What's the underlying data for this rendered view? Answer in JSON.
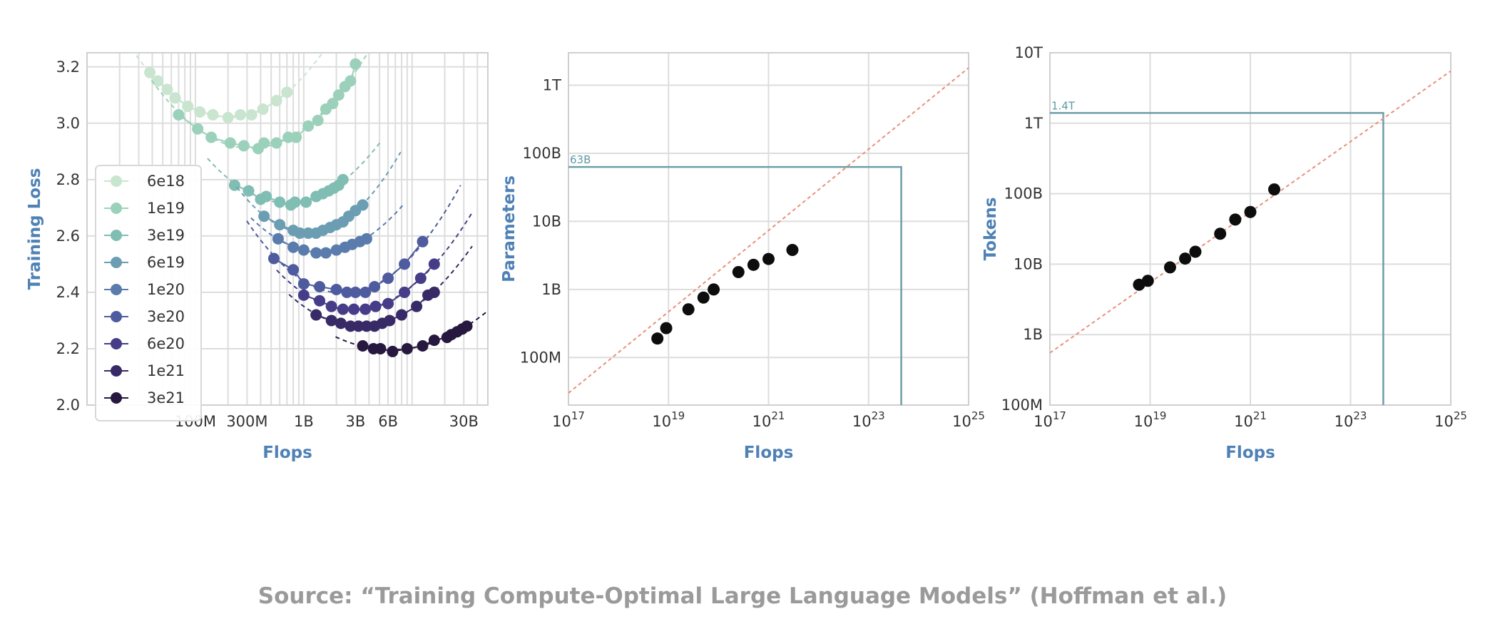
{
  "chart_data": [
    {
      "type": "line",
      "ylabel": "Training Loss",
      "xlabel": "Flops",
      "xscale": "log",
      "xlim": [
        10000000,
        50000000000
      ],
      "ylim": [
        2.0,
        3.25
      ],
      "grid": true,
      "x_ticks": [
        {
          "v": 100000000,
          "label": "100M"
        },
        {
          "v": 300000000,
          "label": "300M"
        },
        {
          "v": 1000000000,
          "label": "1B"
        },
        {
          "v": 3000000000,
          "label": "3B"
        },
        {
          "v": 6000000000,
          "label": "6B"
        },
        {
          "v": 30000000000,
          "label": "30B"
        }
      ],
      "y_ticks": [
        {
          "v": 2.0,
          "label": "2.0"
        },
        {
          "v": 2.2,
          "label": "2.2"
        },
        {
          "v": 2.4,
          "label": "2.4"
        },
        {
          "v": 2.6,
          "label": "2.6"
        },
        {
          "v": 2.8,
          "label": "2.8"
        },
        {
          "v": 3.0,
          "label": "3.0"
        },
        {
          "v": 3.2,
          "label": "3.2"
        }
      ],
      "legend_position": "left",
      "series": [
        {
          "name": "6e18",
          "color": "#c9e5cf",
          "points": [
            [
              38000000,
              3.18
            ],
            [
              45000000,
              3.15
            ],
            [
              55000000,
              3.12
            ],
            [
              65000000,
              3.09
            ],
            [
              85000000,
              3.06
            ],
            [
              110000000,
              3.04
            ],
            [
              145000000,
              3.03
            ],
            [
              200000000,
              3.02
            ],
            [
              260000000,
              3.03
            ],
            [
              330000000,
              3.03
            ],
            [
              420000000,
              3.05
            ],
            [
              560000000,
              3.08
            ],
            [
              700000000,
              3.11
            ]
          ]
        },
        {
          "name": "1e19",
          "color": "#9bd1bb",
          "points": [
            [
              70000000,
              3.03
            ],
            [
              105000000,
              2.98
            ],
            [
              140000000,
              2.95
            ],
            [
              210000000,
              2.93
            ],
            [
              280000000,
              2.92
            ],
            [
              380000000,
              2.91
            ],
            [
              430000000,
              2.93
            ],
            [
              560000000,
              2.93
            ],
            [
              720000000,
              2.95
            ],
            [
              850000000,
              2.95
            ],
            [
              1100000000,
              2.99
            ],
            [
              1350000000,
              3.01
            ],
            [
              1600000000,
              3.05
            ],
            [
              1850000000,
              3.07
            ],
            [
              2100000000,
              3.1
            ],
            [
              2400000000,
              3.13
            ],
            [
              2700000000,
              3.15
            ],
            [
              3000000000,
              3.21
            ]
          ]
        },
        {
          "name": "3e19",
          "color": "#80bdb2",
          "points": [
            [
              230000000,
              2.78
            ],
            [
              310000000,
              2.76
            ],
            [
              400000000,
              2.73
            ],
            [
              450000000,
              2.74
            ],
            [
              600000000,
              2.72
            ],
            [
              760000000,
              2.71
            ],
            [
              830000000,
              2.72
            ],
            [
              1050000000,
              2.72
            ],
            [
              1300000000,
              2.74
            ],
            [
              1500000000,
              2.75
            ],
            [
              1700000000,
              2.76
            ],
            [
              1900000000,
              2.77
            ],
            [
              2100000000,
              2.78
            ],
            [
              2300000000,
              2.8
            ]
          ]
        },
        {
          "name": "6e19",
          "color": "#6b9db3",
          "points": [
            [
              430000000,
              2.67
            ],
            [
              600000000,
              2.64
            ],
            [
              800000000,
              2.62
            ],
            [
              920000000,
              2.61
            ],
            [
              1100000000,
              2.61
            ],
            [
              1300000000,
              2.61
            ],
            [
              1500000000,
              2.62
            ],
            [
              1750000000,
              2.63
            ],
            [
              2000000000,
              2.64
            ],
            [
              2300000000,
              2.65
            ],
            [
              2600000000,
              2.67
            ],
            [
              3000000000,
              2.69
            ],
            [
              3500000000,
              2.71
            ]
          ]
        },
        {
          "name": "1e20",
          "color": "#5a7cad",
          "points": [
            [
              580000000,
              2.59
            ],
            [
              800000000,
              2.56
            ],
            [
              1000000000,
              2.55
            ],
            [
              1300000000,
              2.54
            ],
            [
              1600000000,
              2.54
            ],
            [
              2000000000,
              2.55
            ],
            [
              2400000000,
              2.56
            ],
            [
              2800000000,
              2.57
            ],
            [
              3300000000,
              2.58
            ],
            [
              3800000000,
              2.59
            ]
          ]
        },
        {
          "name": "3e20",
          "color": "#4e5b9f",
          "points": [
            [
              530000000,
              2.52
            ],
            [
              800000000,
              2.48
            ],
            [
              1000000000,
              2.43
            ],
            [
              1400000000,
              2.42
            ],
            [
              2000000000,
              2.41
            ],
            [
              2500000000,
              2.4
            ],
            [
              3000000000,
              2.4
            ],
            [
              3700000000,
              2.4
            ],
            [
              4500000000,
              2.42
            ],
            [
              6000000000,
              2.45
            ],
            [
              8500000000,
              2.5
            ],
            [
              12500000000,
              2.58
            ]
          ]
        },
        {
          "name": "6e20",
          "color": "#463c88",
          "points": [
            [
              1000000000,
              2.39
            ],
            [
              1400000000,
              2.37
            ],
            [
              1800000000,
              2.35
            ],
            [
              2300000000,
              2.34
            ],
            [
              2900000000,
              2.34
            ],
            [
              3700000000,
              2.34
            ],
            [
              4600000000,
              2.35
            ],
            [
              6000000000,
              2.36
            ],
            [
              8500000000,
              2.4
            ],
            [
              12000000000,
              2.45
            ],
            [
              16000000000,
              2.5
            ]
          ]
        },
        {
          "name": "1e21",
          "color": "#372a66",
          "points": [
            [
              1300000000,
              2.32
            ],
            [
              1800000000,
              2.3
            ],
            [
              2200000000,
              2.29
            ],
            [
              2700000000,
              2.28
            ],
            [
              3200000000,
              2.28
            ],
            [
              3800000000,
              2.28
            ],
            [
              4500000000,
              2.28
            ],
            [
              5300000000,
              2.29
            ],
            [
              6200000000,
              2.3
            ],
            [
              8000000000,
              2.32
            ],
            [
              11000000000,
              2.35
            ],
            [
              14000000000,
              2.39
            ],
            [
              16000000000,
              2.4
            ]
          ]
        },
        {
          "name": "3e21",
          "color": "#26183e",
          "points": [
            [
              3500000000,
              2.21
            ],
            [
              4400000000,
              2.2
            ],
            [
              5100000000,
              2.2
            ],
            [
              6600000000,
              2.19
            ],
            [
              9000000000,
              2.2
            ],
            [
              12500000000,
              2.21
            ],
            [
              16000000000,
              2.23
            ],
            [
              21000000000,
              2.24
            ],
            [
              23000000000,
              2.25
            ],
            [
              26000000000,
              2.26
            ],
            [
              29000000000,
              2.27
            ],
            [
              32000000000,
              2.28
            ]
          ]
        }
      ]
    },
    {
      "type": "scatter",
      "ylabel": "Parameters",
      "xlabel": "Flops",
      "xscale": "log",
      "yscale": "log",
      "xlim": [
        1e+17,
        1e+25
      ],
      "ylim": [
        20000000,
        3000000000000
      ],
      "grid": true,
      "x_ticks": [
        {
          "v": 1e+17,
          "base": "10",
          "exp": "17"
        },
        {
          "v": 1e+19,
          "base": "10",
          "exp": "19"
        },
        {
          "v": 1e+21,
          "base": "10",
          "exp": "21"
        },
        {
          "v": 1e+23,
          "base": "10",
          "exp": "23"
        },
        {
          "v": 1e+25,
          "base": "10",
          "exp": "25"
        }
      ],
      "y_ticks": [
        {
          "v": 100000000,
          "label": "100M"
        },
        {
          "v": 1000000000,
          "label": "1B"
        },
        {
          "v": 10000000000,
          "label": "10B"
        },
        {
          "v": 100000000000,
          "label": "100B"
        },
        {
          "v": 1000000000000,
          "label": "1T"
        }
      ],
      "points": [
        [
          6e+18,
          190000000
        ],
        [
          9e+18,
          270000000
        ],
        [
          2.5e+19,
          510000000
        ],
        [
          5e+19,
          760000000
        ],
        [
          8e+19,
          1000000000
        ],
        [
          2.5e+20,
          1800000000
        ],
        [
          5e+20,
          2300000000
        ],
        [
          1e+21,
          2800000000
        ],
        [
          3e+21,
          3800000000
        ]
      ],
      "fit_line": [
        [
          1e+17,
          30000000
        ],
        [
          1e+25,
          1800000000000
        ]
      ],
      "annotation": {
        "label": "63B",
        "x": 4.5e+23,
        "y": 63000000000
      }
    },
    {
      "type": "scatter",
      "ylabel": "Tokens",
      "xlabel": "Flops",
      "xscale": "log",
      "yscale": "log",
      "xlim": [
        1e+17,
        1e+25
      ],
      "ylim": [
        100000000,
        10000000000000
      ],
      "grid": true,
      "x_ticks": [
        {
          "v": 1e+17,
          "base": "10",
          "exp": "17"
        },
        {
          "v": 1e+19,
          "base": "10",
          "exp": "19"
        },
        {
          "v": 1e+21,
          "base": "10",
          "exp": "21"
        },
        {
          "v": 1e+23,
          "base": "10",
          "exp": "23"
        },
        {
          "v": 1e+25,
          "base": "10",
          "exp": "25"
        }
      ],
      "y_ticks": [
        {
          "v": 100000000,
          "label": "100M"
        },
        {
          "v": 1000000000,
          "label": "1B"
        },
        {
          "v": 10000000000,
          "label": "10B"
        },
        {
          "v": 100000000000,
          "label": "100B"
        },
        {
          "v": 1000000000000,
          "label": "1T"
        },
        {
          "v": 10000000000000,
          "label": "10T"
        }
      ],
      "points": [
        [
          6e+18,
          5100000000
        ],
        [
          9e+18,
          5800000000
        ],
        [
          2.5e+19,
          9000000000
        ],
        [
          5e+19,
          12000000000
        ],
        [
          8e+19,
          15000000000
        ],
        [
          2.5e+20,
          27000000000
        ],
        [
          5e+20,
          43000000000
        ],
        [
          1e+21,
          55000000000
        ],
        [
          3e+21,
          115000000000
        ]
      ],
      "fit_line": [
        [
          1e+17,
          550000000
        ],
        [
          1e+25,
          5500000000000
        ]
      ],
      "annotation": {
        "label": "1.4T",
        "x": 4.5e+23,
        "y": 1400000000000
      }
    }
  ],
  "source": "Source: “Training Compute-Optimal Large Language Models” (Hoffman et al.)"
}
